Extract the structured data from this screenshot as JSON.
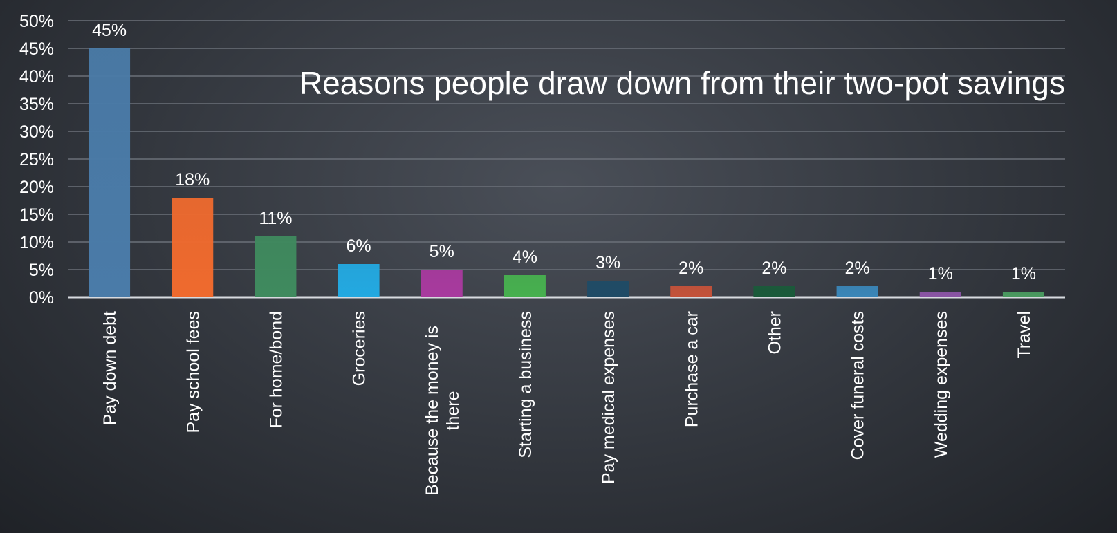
{
  "chart_data": {
    "type": "bar",
    "title": "Reasons people draw down from their two-pot savings",
    "xlabel": "",
    "ylabel": "",
    "ylim": [
      0,
      50
    ],
    "y_ticks": [
      "0%",
      "5%",
      "10%",
      "15%",
      "20%",
      "25%",
      "30%",
      "35%",
      "40%",
      "45%",
      "50%"
    ],
    "categories": [
      "Pay down debt",
      "Pay school fees",
      "For home/bond",
      "Groceries",
      "Because the money is there",
      "Starting a business",
      "Pay medical expenses",
      "Purchase a car",
      "Other",
      "Cover funeral costs",
      "Wedding expenses",
      "Travel"
    ],
    "category_lines": [
      [
        "Pay down debt"
      ],
      [
        "Pay school fees"
      ],
      [
        "For home/bond"
      ],
      [
        "Groceries"
      ],
      [
        "Because the money is",
        "there"
      ],
      [
        "Starting a business"
      ],
      [
        "Pay medical expenses"
      ],
      [
        "Purchase a car"
      ],
      [
        "Other"
      ],
      [
        "Cover funeral costs"
      ],
      [
        "Wedding expenses"
      ],
      [
        "Travel"
      ]
    ],
    "values": [
      45,
      18,
      11,
      6,
      5,
      4,
      3,
      2,
      2,
      2,
      1,
      1
    ],
    "value_labels": [
      "45%",
      "18%",
      "11%",
      "6%",
      "5%",
      "4%",
      "3%",
      "2%",
      "2%",
      "2%",
      "1%",
      "1%"
    ],
    "colors": [
      "#4a7ba8",
      "#ef6a2e",
      "#3f8a5e",
      "#23a9e1",
      "#a83a9e",
      "#47b04f",
      "#1f4b66",
      "#c4523a",
      "#1a5a3a",
      "#3a86b8",
      "#8b55a5",
      "#4a9a60"
    ],
    "grid": true,
    "legend": "none"
  }
}
